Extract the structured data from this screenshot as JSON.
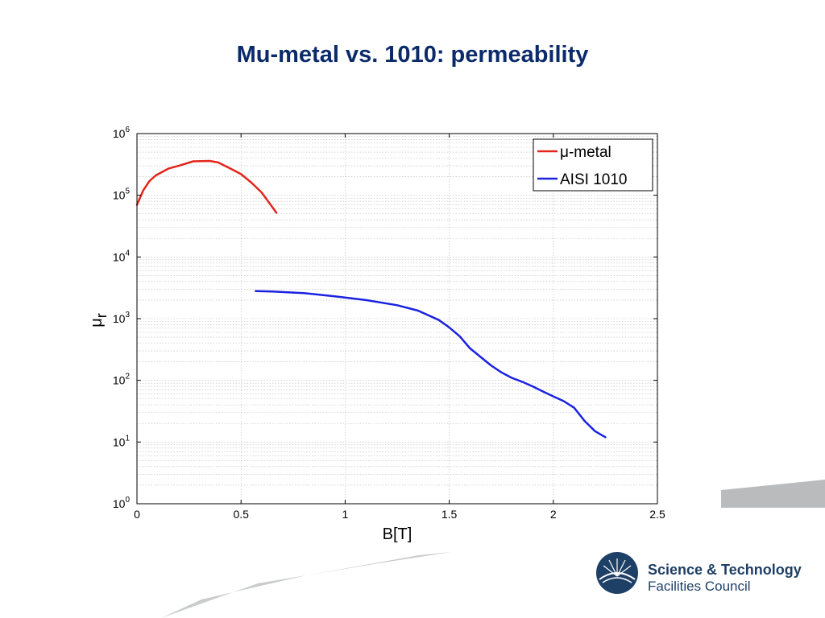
{
  "slide": {
    "title": "Mu-metal vs. 1010: permeability"
  },
  "logo": {
    "line1": "Science & Technology",
    "line2": "Facilities Council"
  },
  "colors": {
    "title": "#0b2a6a",
    "mu_metal": "#e3261c",
    "aisi_1010": "#1a22e0",
    "logo": "#1e3f66"
  },
  "chart_data": {
    "type": "line",
    "title": "",
    "xlabel": "B[T]",
    "ylabel": "μr",
    "xlim": [
      0,
      2.5
    ],
    "ylim": [
      1,
      1000000
    ],
    "yscale": "log",
    "grid": true,
    "legend_position": "top-right",
    "x_ticks": [
      "0",
      "0.5",
      "1",
      "1.5",
      "2",
      "2.5"
    ],
    "y_ticks": [
      "10^0",
      "10^1",
      "10^2",
      "10^3",
      "10^4",
      "10^5",
      "10^6"
    ],
    "series": [
      {
        "name": "μ-metal",
        "color": "#e3261c",
        "points": [
          [
            0.0,
            70000
          ],
          [
            0.03,
            120000
          ],
          [
            0.06,
            170000
          ],
          [
            0.09,
            210000
          ],
          [
            0.15,
            270000
          ],
          [
            0.2,
            300000
          ],
          [
            0.27,
            355000
          ],
          [
            0.35,
            360000
          ],
          [
            0.39,
            340000
          ],
          [
            0.45,
            270000
          ],
          [
            0.5,
            220000
          ],
          [
            0.55,
            160000
          ],
          [
            0.6,
            110000
          ],
          [
            0.67,
            52000
          ]
        ]
      },
      {
        "name": "AISI 1010",
        "color": "#1a22e0",
        "points": [
          [
            0.57,
            2800
          ],
          [
            0.65,
            2750
          ],
          [
            0.8,
            2600
          ],
          [
            0.95,
            2300
          ],
          [
            1.1,
            2000
          ],
          [
            1.25,
            1650
          ],
          [
            1.35,
            1350
          ],
          [
            1.45,
            950
          ],
          [
            1.5,
            720
          ],
          [
            1.55,
            520
          ],
          [
            1.6,
            330
          ],
          [
            1.65,
            240
          ],
          [
            1.7,
            175
          ],
          [
            1.75,
            135
          ],
          [
            1.8,
            110
          ],
          [
            1.85,
            95
          ],
          [
            1.9,
            80
          ],
          [
            1.95,
            66
          ],
          [
            2.0,
            55
          ],
          [
            2.05,
            46
          ],
          [
            2.1,
            36
          ],
          [
            2.15,
            22
          ],
          [
            2.2,
            15
          ],
          [
            2.25,
            12
          ]
        ]
      }
    ]
  }
}
